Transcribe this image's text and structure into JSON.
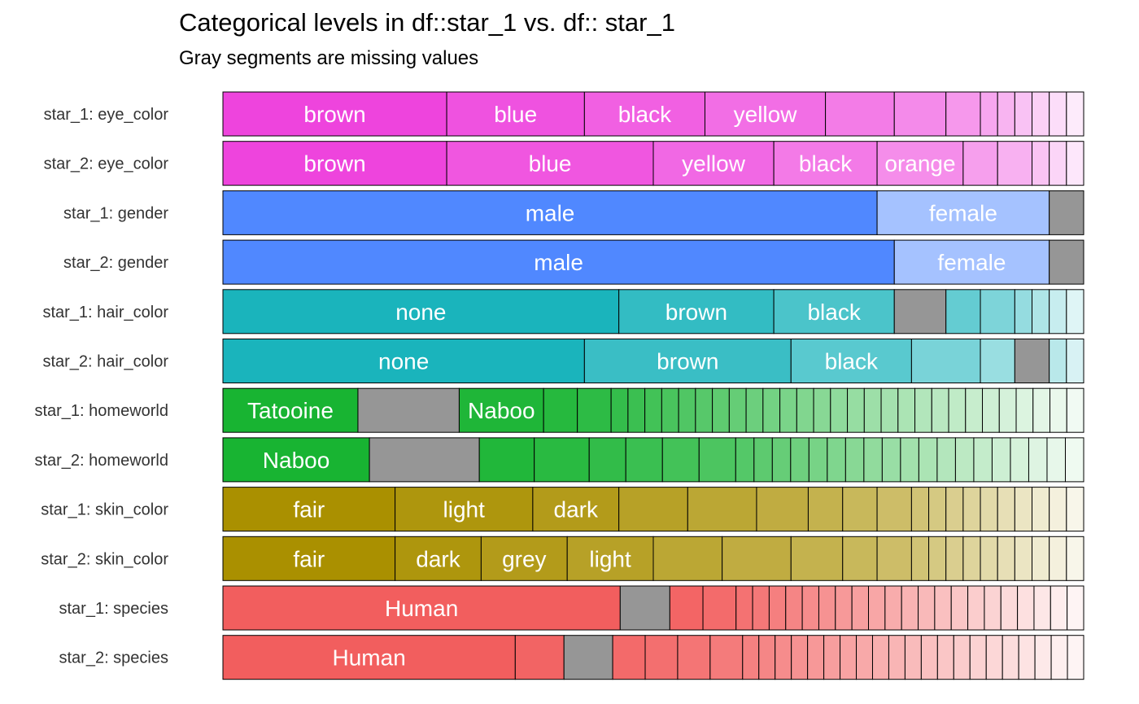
{
  "chart_data": {
    "type": "bar",
    "orientation": "horizontal",
    "stacked": true,
    "normalized": true,
    "title": "Categorical levels in df::star_1 vs. df:: star_1",
    "subtitle": "Gray segments are missing values",
    "xlabel": "",
    "ylabel": "",
    "legend": "none",
    "grid": false,
    "missing_color": "#969696",
    "rows": [
      {
        "name": "star_1: eye_color",
        "color": "#ee44dd",
        "segments": [
          {
            "label": "brown",
            "value": 0.26
          },
          {
            "label": "blue",
            "value": 0.16
          },
          {
            "label": "black",
            "value": 0.14
          },
          {
            "label": "yellow",
            "value": 0.14
          },
          {
            "label": "",
            "value": 0.08
          },
          {
            "label": "",
            "value": 0.06
          },
          {
            "label": "",
            "value": 0.04
          },
          {
            "label": "",
            "value": 0.02
          },
          {
            "label": "",
            "value": 0.02
          },
          {
            "label": "",
            "value": 0.02
          },
          {
            "label": "",
            "value": 0.02
          },
          {
            "label": "",
            "value": 0.02
          },
          {
            "label": "",
            "value": 0.02
          }
        ]
      },
      {
        "name": "star_2: eye_color",
        "color": "#ee44dd",
        "segments": [
          {
            "label": "brown",
            "value": 0.26
          },
          {
            "label": "blue",
            "value": 0.24
          },
          {
            "label": "yellow",
            "value": 0.14
          },
          {
            "label": "black",
            "value": 0.12
          },
          {
            "label": "orange",
            "value": 0.1
          },
          {
            "label": "",
            "value": 0.04
          },
          {
            "label": "",
            "value": 0.04
          },
          {
            "label": "",
            "value": 0.02
          },
          {
            "label": "",
            "value": 0.02
          },
          {
            "label": "",
            "value": 0.02
          }
        ]
      },
      {
        "name": "star_1: gender",
        "color": "#5088ff",
        "segments": [
          {
            "label": "male",
            "value": 0.76
          },
          {
            "label": "female",
            "value": 0.2
          },
          {
            "label": "",
            "value": 0.04,
            "missing": true
          }
        ]
      },
      {
        "name": "star_2: gender",
        "color": "#5088ff",
        "segments": [
          {
            "label": "male",
            "value": 0.78
          },
          {
            "label": "female",
            "value": 0.18
          },
          {
            "label": "",
            "value": 0.04,
            "missing": true
          }
        ]
      },
      {
        "name": "star_1: hair_color",
        "color": "#1ab4bc",
        "segments": [
          {
            "label": "none",
            "value": 0.46
          },
          {
            "label": "brown",
            "value": 0.18
          },
          {
            "label": "black",
            "value": 0.14
          },
          {
            "label": "",
            "value": 0.06,
            "missing": true
          },
          {
            "label": "",
            "value": 0.04
          },
          {
            "label": "",
            "value": 0.04
          },
          {
            "label": "",
            "value": 0.02
          },
          {
            "label": "",
            "value": 0.02
          },
          {
            "label": "",
            "value": 0.02
          },
          {
            "label": "",
            "value": 0.02
          }
        ]
      },
      {
        "name": "star_2: hair_color",
        "color": "#1ab4bc",
        "segments": [
          {
            "label": "none",
            "value": 0.42
          },
          {
            "label": "brown",
            "value": 0.24
          },
          {
            "label": "black",
            "value": 0.14
          },
          {
            "label": "",
            "value": 0.08
          },
          {
            "label": "",
            "value": 0.04
          },
          {
            "label": "",
            "value": 0.04,
            "missing": true
          },
          {
            "label": "",
            "value": 0.02
          },
          {
            "label": "",
            "value": 0.02
          }
        ]
      },
      {
        "name": "star_1: homeworld",
        "color": "#18b432",
        "segments": [
          {
            "label": "Tatooine",
            "value": 0.16
          },
          {
            "label": "",
            "value": 0.12,
            "missing": true
          },
          {
            "label": "Naboo",
            "value": 0.1
          },
          {
            "label": "",
            "value": 0.04
          },
          {
            "label": "",
            "value": 0.04
          },
          {
            "label": "",
            "value": 0.02
          },
          {
            "label": "",
            "value": 0.02
          },
          {
            "label": "",
            "value": 0.02
          },
          {
            "label": "",
            "value": 0.02
          },
          {
            "label": "",
            "value": 0.02
          },
          {
            "label": "",
            "value": 0.02
          },
          {
            "label": "",
            "value": 0.02
          },
          {
            "label": "",
            "value": 0.02
          },
          {
            "label": "",
            "value": 0.02
          },
          {
            "label": "",
            "value": 0.02
          },
          {
            "label": "",
            "value": 0.02
          },
          {
            "label": "",
            "value": 0.02
          },
          {
            "label": "",
            "value": 0.02
          },
          {
            "label": "",
            "value": 0.02
          },
          {
            "label": "",
            "value": 0.02
          },
          {
            "label": "",
            "value": 0.02
          },
          {
            "label": "",
            "value": 0.02
          },
          {
            "label": "",
            "value": 0.02
          },
          {
            "label": "",
            "value": 0.02
          },
          {
            "label": "",
            "value": 0.02
          },
          {
            "label": "",
            "value": 0.02
          },
          {
            "label": "",
            "value": 0.02
          },
          {
            "label": "",
            "value": 0.02
          },
          {
            "label": "",
            "value": 0.02
          },
          {
            "label": "",
            "value": 0.02
          },
          {
            "label": "",
            "value": 0.02
          },
          {
            "label": "",
            "value": 0.02
          },
          {
            "label": "",
            "value": 0.02
          }
        ]
      },
      {
        "name": "star_2: homeworld",
        "color": "#18b432",
        "segments": [
          {
            "label": "Naboo",
            "value": 0.16
          },
          {
            "label": "",
            "value": 0.12,
            "missing": true
          },
          {
            "label": "",
            "value": 0.06
          },
          {
            "label": "",
            "value": 0.06
          },
          {
            "label": "",
            "value": 0.04
          },
          {
            "label": "",
            "value": 0.04
          },
          {
            "label": "",
            "value": 0.04
          },
          {
            "label": "",
            "value": 0.04
          },
          {
            "label": "",
            "value": 0.02
          },
          {
            "label": "",
            "value": 0.02
          },
          {
            "label": "",
            "value": 0.02
          },
          {
            "label": "",
            "value": 0.02
          },
          {
            "label": "",
            "value": 0.02
          },
          {
            "label": "",
            "value": 0.02
          },
          {
            "label": "",
            "value": 0.02
          },
          {
            "label": "",
            "value": 0.02
          },
          {
            "label": "",
            "value": 0.02
          },
          {
            "label": "",
            "value": 0.02
          },
          {
            "label": "",
            "value": 0.02
          },
          {
            "label": "",
            "value": 0.02
          },
          {
            "label": "",
            "value": 0.02
          },
          {
            "label": "",
            "value": 0.02
          },
          {
            "label": "",
            "value": 0.02
          },
          {
            "label": "",
            "value": 0.02
          },
          {
            "label": "",
            "value": 0.02
          },
          {
            "label": "",
            "value": 0.02
          },
          {
            "label": "",
            "value": 0.02
          }
        ]
      },
      {
        "name": "star_1: skin_color",
        "color": "#aa9000",
        "segments": [
          {
            "label": "fair",
            "value": 0.2
          },
          {
            "label": "light",
            "value": 0.16
          },
          {
            "label": "dark",
            "value": 0.1
          },
          {
            "label": "",
            "value": 0.08
          },
          {
            "label": "",
            "value": 0.08
          },
          {
            "label": "",
            "value": 0.06
          },
          {
            "label": "",
            "value": 0.04
          },
          {
            "label": "",
            "value": 0.04
          },
          {
            "label": "",
            "value": 0.04
          },
          {
            "label": "",
            "value": 0.02
          },
          {
            "label": "",
            "value": 0.02
          },
          {
            "label": "",
            "value": 0.02
          },
          {
            "label": "",
            "value": 0.02
          },
          {
            "label": "",
            "value": 0.02
          },
          {
            "label": "",
            "value": 0.02
          },
          {
            "label": "",
            "value": 0.02
          },
          {
            "label": "",
            "value": 0.02
          },
          {
            "label": "",
            "value": 0.02
          },
          {
            "label": "",
            "value": 0.02
          }
        ]
      },
      {
        "name": "star_2: skin_color",
        "color": "#aa9000",
        "segments": [
          {
            "label": "fair",
            "value": 0.2
          },
          {
            "label": "dark",
            "value": 0.1
          },
          {
            "label": "grey",
            "value": 0.1
          },
          {
            "label": "light",
            "value": 0.1
          },
          {
            "label": "",
            "value": 0.08
          },
          {
            "label": "",
            "value": 0.08
          },
          {
            "label": "",
            "value": 0.06
          },
          {
            "label": "",
            "value": 0.04
          },
          {
            "label": "",
            "value": 0.04
          },
          {
            "label": "",
            "value": 0.02
          },
          {
            "label": "",
            "value": 0.02
          },
          {
            "label": "",
            "value": 0.02
          },
          {
            "label": "",
            "value": 0.02
          },
          {
            "label": "",
            "value": 0.02
          },
          {
            "label": "",
            "value": 0.02
          },
          {
            "label": "",
            "value": 0.02
          },
          {
            "label": "",
            "value": 0.02
          },
          {
            "label": "",
            "value": 0.02
          },
          {
            "label": "",
            "value": 0.02
          }
        ]
      },
      {
        "name": "star_1: species",
        "color": "#f25e5e",
        "segments": [
          {
            "label": "Human",
            "value": 0.48
          },
          {
            "label": "",
            "value": 0.06,
            "missing": true
          },
          {
            "label": "",
            "value": 0.04
          },
          {
            "label": "",
            "value": 0.04
          },
          {
            "label": "",
            "value": 0.02
          },
          {
            "label": "",
            "value": 0.02
          },
          {
            "label": "",
            "value": 0.02
          },
          {
            "label": "",
            "value": 0.02
          },
          {
            "label": "",
            "value": 0.02
          },
          {
            "label": "",
            "value": 0.02
          },
          {
            "label": "",
            "value": 0.02
          },
          {
            "label": "",
            "value": 0.02
          },
          {
            "label": "",
            "value": 0.02
          },
          {
            "label": "",
            "value": 0.02
          },
          {
            "label": "",
            "value": 0.02
          },
          {
            "label": "",
            "value": 0.02
          },
          {
            "label": "",
            "value": 0.02
          },
          {
            "label": "",
            "value": 0.02
          },
          {
            "label": "",
            "value": 0.02
          },
          {
            "label": "",
            "value": 0.02
          },
          {
            "label": "",
            "value": 0.02
          },
          {
            "label": "",
            "value": 0.02
          },
          {
            "label": "",
            "value": 0.02
          },
          {
            "label": "",
            "value": 0.02
          },
          {
            "label": "",
            "value": 0.02
          }
        ]
      },
      {
        "name": "star_2: species",
        "color": "#f25e5e",
        "segments": [
          {
            "label": "Human",
            "value": 0.36
          },
          {
            "label": "",
            "value": 0.06
          },
          {
            "label": "",
            "value": 0.06,
            "missing": true
          },
          {
            "label": "",
            "value": 0.04
          },
          {
            "label": "",
            "value": 0.04
          },
          {
            "label": "",
            "value": 0.04
          },
          {
            "label": "",
            "value": 0.04
          },
          {
            "label": "",
            "value": 0.02
          },
          {
            "label": "",
            "value": 0.02
          },
          {
            "label": "",
            "value": 0.02
          },
          {
            "label": "",
            "value": 0.02
          },
          {
            "label": "",
            "value": 0.02
          },
          {
            "label": "",
            "value": 0.02
          },
          {
            "label": "",
            "value": 0.02
          },
          {
            "label": "",
            "value": 0.02
          },
          {
            "label": "",
            "value": 0.02
          },
          {
            "label": "",
            "value": 0.02
          },
          {
            "label": "",
            "value": 0.02
          },
          {
            "label": "",
            "value": 0.02
          },
          {
            "label": "",
            "value": 0.02
          },
          {
            "label": "",
            "value": 0.02
          },
          {
            "label": "",
            "value": 0.02
          },
          {
            "label": "",
            "value": 0.02
          },
          {
            "label": "",
            "value": 0.02
          },
          {
            "label": "",
            "value": 0.02
          },
          {
            "label": "",
            "value": 0.02
          },
          {
            "label": "",
            "value": 0.02
          },
          {
            "label": "",
            "value": 0.02
          }
        ]
      }
    ]
  }
}
